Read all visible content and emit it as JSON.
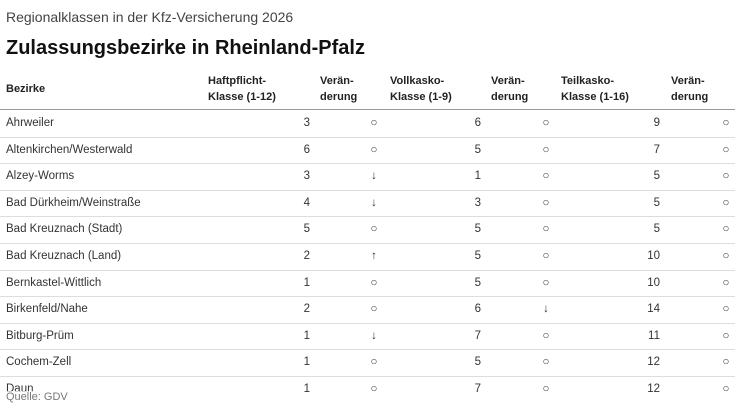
{
  "header": {
    "kicker": "Regionalklassen in der Kfz-Versicherung 2026",
    "title": "Zulassungsbezirke in Rheinland-Pfalz"
  },
  "table": {
    "columns": [
      "Bezirke",
      "Haftpflicht-\nKlasse (1-12)",
      "Verän-\nderung",
      "Vollkasko-\nKlasse (1-9)",
      "Verän-\nderung",
      "Teilkasko-\nKlasse (1-16)",
      "Verän-\nderung"
    ],
    "rows": [
      [
        "Ahrweiler",
        "3",
        "○",
        "6",
        "○",
        "9",
        "○"
      ],
      [
        "Altenkirchen/Westerwald",
        "6",
        "○",
        "5",
        "○",
        "7",
        "○"
      ],
      [
        "Alzey-Worms",
        "3",
        "↓",
        "1",
        "○",
        "5",
        "○"
      ],
      [
        "Bad Dürkheim/Weinstraße",
        "4",
        "↓",
        "3",
        "○",
        "5",
        "○"
      ],
      [
        "Bad Kreuznach (Stadt)",
        "5",
        "○",
        "5",
        "○",
        "5",
        "○"
      ],
      [
        "Bad Kreuznach (Land)",
        "2",
        "↑",
        "5",
        "○",
        "10",
        "○"
      ],
      [
        "Bernkastel-Wittlich",
        "1",
        "○",
        "5",
        "○",
        "10",
        "○"
      ],
      [
        "Birkenfeld/Nahe",
        "2",
        "○",
        "6",
        "↓",
        "14",
        "○"
      ],
      [
        "Bitburg-Prüm",
        "1",
        "↓",
        "7",
        "○",
        "11",
        "○"
      ],
      [
        "Cochem-Zell",
        "1",
        "○",
        "5",
        "○",
        "12",
        "○"
      ],
      [
        "Daun",
        "1",
        "○",
        "7",
        "○",
        "12",
        "○"
      ]
    ]
  },
  "footer": {
    "source": "Quelle: GDV"
  }
}
